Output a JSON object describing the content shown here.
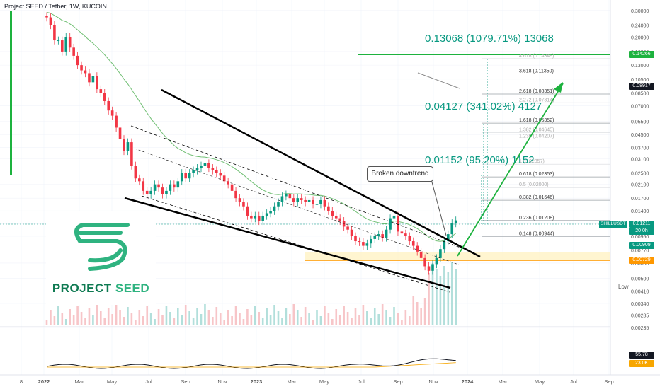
{
  "header": {
    "title": "Project SEED / Tether, 1W, KUCOIN"
  },
  "logo": {
    "word1": "PROJECT",
    "word2": "SEED",
    "color": "#2fb380"
  },
  "annotations": {
    "target3": "0.13068 (1079.71%) 13068",
    "target2": "0.04127 (341.02%) 4127",
    "target1": "0.01152 (95.20%) 1152",
    "callout": "Broken downtrend",
    "low": "Low"
  },
  "fib_levels": [
    "4.618 (0.14349)",
    "3.618 (0.11350)",
    "2.618 (0.08351)",
    "2.272 (0.07314)",
    "1.618 (0.05352)",
    "1.382 (0.04645)",
    "1.236 (0.04207)",
    "1 (0.02857)",
    "0.618 (0.02353)",
    "0.5 (0.02000)",
    "0.382 (0.01646)",
    "0.236 (0.01208)",
    "0.148 (0.00944)"
  ],
  "price_tags": {
    "target": "0.14266",
    "mid": "0.08917",
    "current": "0.01211",
    "countdown": "20 0h",
    "symbol": "SHILLUSDT",
    "lower1": "0.00909",
    "support": "0.00729",
    "rsi": "55.78",
    "rsi_ma": "23.0K"
  },
  "colors": {
    "up": "#089981",
    "down": "#f23645",
    "support": "#ff9800",
    "ema": "#4caf50"
  },
  "chart_data": {
    "type": "candlestick",
    "title": "Project SEED / Tether, 1W, KUCOIN",
    "y_scale": "log",
    "ylim": [
      0.002,
      0.33
    ],
    "y_ticks": [
      "0.30000",
      "0.24000",
      "0.20000",
      "0.16000",
      "0.13000",
      "0.10500",
      "0.08500",
      "0.07000",
      "0.05500",
      "0.04500",
      "0.03700",
      "0.03100",
      "0.02500",
      "0.02100",
      "0.01700",
      "0.01400",
      "0.01150",
      "0.00950",
      "0.00770",
      "0.00630",
      "0.00500",
      "0.00410",
      "0.00340",
      "0.00285",
      "0.00235"
    ],
    "x_ticks": [
      "8",
      "2022",
      "Mar",
      "May",
      "Jul",
      "Sep",
      "Nov",
      "2023",
      "Mar",
      "May",
      "Jul",
      "Sep",
      "Nov",
      "2024",
      "Mar",
      "May",
      "Jul",
      "Sep"
    ],
    "support_level": 0.00729,
    "target_level": 0.14266,
    "current_price": 0.01211,
    "series": [
      {
        "name": "SHILLUSDT",
        "close": [
          0.27,
          0.24,
          0.19,
          0.19,
          0.16,
          0.2,
          0.17,
          0.15,
          0.13,
          0.12,
          0.115,
          0.1,
          0.11,
          0.09,
          0.085,
          0.075,
          0.065,
          0.06,
          0.05,
          0.042,
          0.035,
          0.04,
          0.028,
          0.023,
          0.022,
          0.019,
          0.018,
          0.019,
          0.021,
          0.02,
          0.018,
          0.019,
          0.021,
          0.02,
          0.022,
          0.025,
          0.023,
          0.025,
          0.026,
          0.027,
          0.028,
          0.029,
          0.027,
          0.026,
          0.025,
          0.024,
          0.022,
          0.021,
          0.019,
          0.017,
          0.016,
          0.015,
          0.013,
          0.0125,
          0.013,
          0.012,
          0.013,
          0.0135,
          0.014,
          0.015,
          0.016,
          0.0175,
          0.018,
          0.017,
          0.016,
          0.017,
          0.0165,
          0.016,
          0.0165,
          0.0155,
          0.0155,
          0.0165,
          0.015,
          0.014,
          0.013,
          0.0125,
          0.012,
          0.011,
          0.0105,
          0.0095,
          0.0088,
          0.0087,
          0.0082,
          0.0085,
          0.0091,
          0.0095,
          0.0098,
          0.0093,
          0.0105,
          0.0125,
          0.013,
          0.0102,
          0.0099,
          0.0095,
          0.0088,
          0.0082,
          0.0075,
          0.0068,
          0.006,
          0.0056,
          0.0062,
          0.0068,
          0.0078,
          0.0088,
          0.0098,
          0.0116,
          0.0121
        ]
      }
    ]
  }
}
